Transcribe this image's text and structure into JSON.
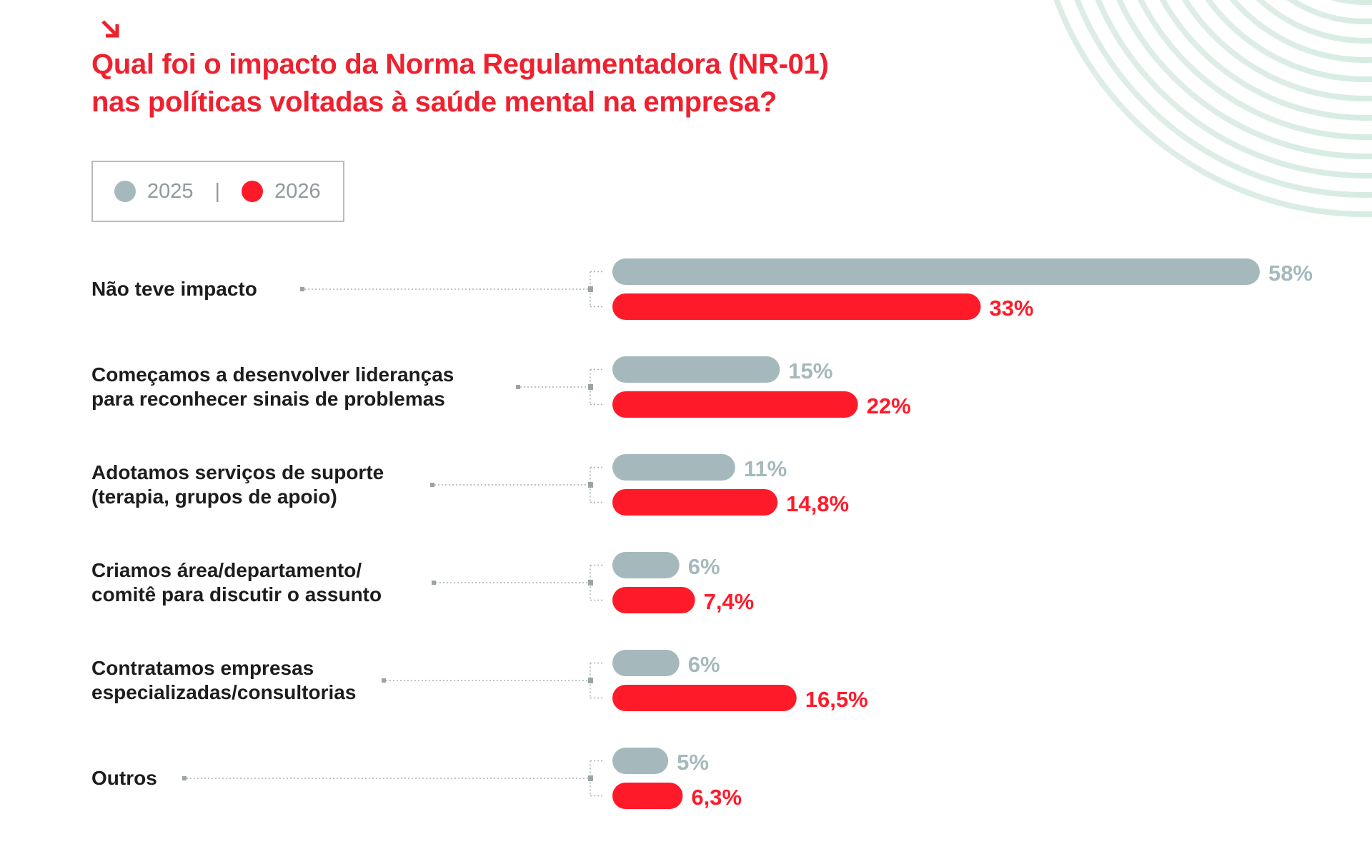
{
  "title": {
    "line1": "Qual foi o impacto da Norma Regulamentadora (NR-01)",
    "line2": "nas políticas voltadas à saúde mental na empresa?"
  },
  "legend": {
    "items": [
      {
        "label": "2025",
        "color": "#a5b9bd"
      },
      {
        "label": "2026",
        "color": "#ff1a2a"
      }
    ],
    "separator": "|"
  },
  "chart_data": {
    "type": "bar",
    "orientation": "horizontal",
    "title": "Qual foi o impacto da Norma Regulamentadora (NR-01) nas políticas voltadas à saúde mental na empresa?",
    "categories": [
      [
        "Não teve impacto"
      ],
      [
        "Começamos a desenvolver lideranças",
        "para reconhecer sinais de problemas"
      ],
      [
        "Adotamos serviços de suporte",
        "(terapia, grupos de apoio)"
      ],
      [
        "Criamos área/departamento/",
        "comitê para discutir o assunto"
      ],
      [
        "Contratamos empresas",
        "especializadas/consultorias"
      ],
      [
        "Outros"
      ]
    ],
    "series": [
      {
        "name": "2025",
        "color": "#a5b9bd",
        "values": [
          58,
          15,
          11,
          6,
          6,
          5
        ],
        "labels": [
          "58%",
          "15%",
          "11%",
          "6%",
          "6%",
          "5%"
        ]
      },
      {
        "name": "2026",
        "color": "#ff1a2a",
        "values": [
          33,
          22,
          14.8,
          7.4,
          16.5,
          6.3
        ],
        "labels": [
          "33%",
          "22%",
          "14,8%",
          "7,4%",
          "16,5%",
          "6,3%"
        ]
      }
    ],
    "unit": "%",
    "legend_position": "top-left",
    "grid": false
  }
}
